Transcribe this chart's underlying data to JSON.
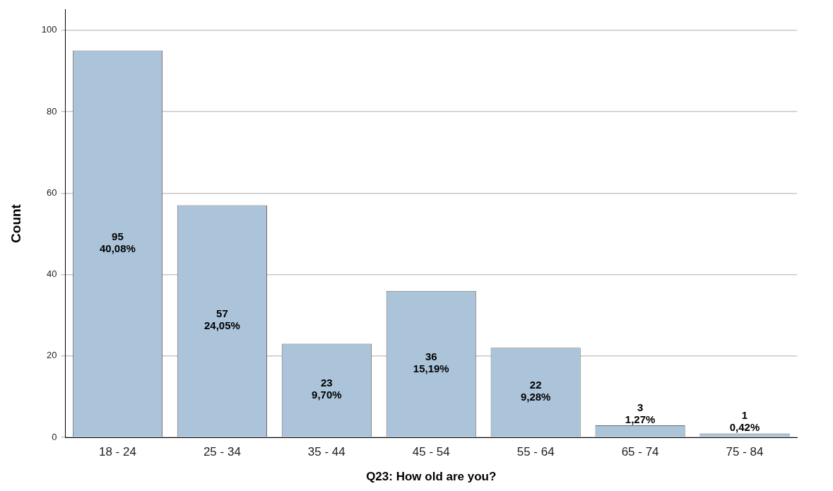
{
  "chart_data": {
    "type": "bar",
    "xlabel": "Q23: How old are you?",
    "ylabel": "Count",
    "categories": [
      "18 - 24",
      "25 - 34",
      "35 - 44",
      "45 - 54",
      "55 - 64",
      "65 - 74",
      "75 - 84"
    ],
    "values": [
      95,
      57,
      23,
      36,
      22,
      3,
      1
    ],
    "value_labels": [
      "95\n40,08%",
      "57\n24,05%",
      "23\n9,70%",
      "36\n15,19%",
      "22\n9,28%",
      "3\n1,27%",
      "1\n0,42%"
    ],
    "color": "#abc4da",
    "ylim": [
      0,
      105
    ],
    "yticks": [
      0,
      20,
      40,
      60,
      80,
      100
    ],
    "grid": "y",
    "legend": false
  }
}
